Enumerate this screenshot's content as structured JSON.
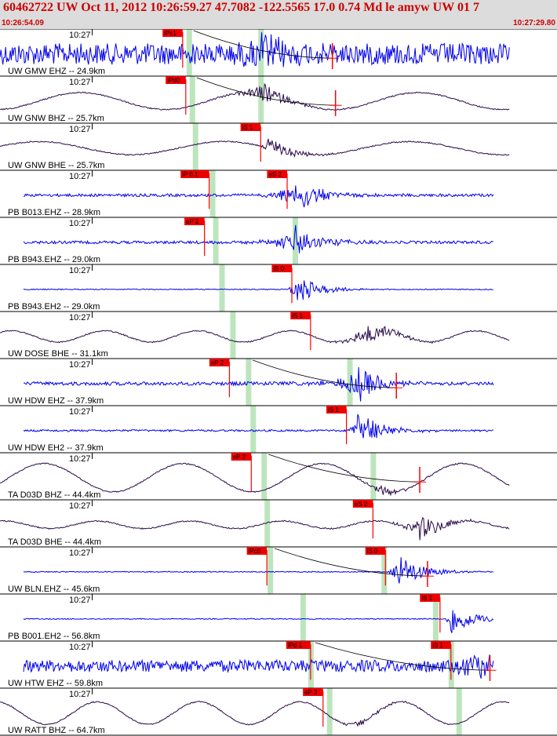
{
  "header": {
    "title": "60462722 UW Oct 11, 2012 10:26:59.27   47.7082 -122.5565 17.0 0.74 Md le amyw UW 01    7",
    "start_time": "10:26:54.09",
    "end_time": "10:27:29.80"
  },
  "time_axis": {
    "start_seconds": 54.09,
    "end_seconds": 89.8,
    "minute_label": "10:27"
  },
  "colors": {
    "header_bg": "#dcdcdc",
    "header_text": "#cc0000",
    "pick": "#ff0000",
    "pick_label_bg": "#ee0000",
    "window": "#bde5bd",
    "trace_blue": "#0000ee",
    "trace_dark": "#2a0a4a",
    "grid": "#000000"
  },
  "traces": [
    {
      "label": "UW GMW EHZ -- 24.9km",
      "color": "blue",
      "style": "noise",
      "amp": 0.9,
      "freq": 0,
      "p_label": "iPc1",
      "p_time": 65.8,
      "s_label": "",
      "s_time": null,
      "event_start": 66.0,
      "event_time": 70.8,
      "event_amp": 1.6,
      "windows": [
        66.2,
        70.8
      ],
      "theory": true,
      "cross": 75.4
    },
    {
      "label": "UW GNW BHZ -- 25.7km",
      "color": "dark",
      "style": "wave",
      "amp": 0.45,
      "freq": 3.3,
      "p_label": "iPd0",
      "p_time": 66.0,
      "s_label": "",
      "s_time": null,
      "event_start": 66.0,
      "event_time": 70.8,
      "event_amp": 0.9,
      "windows": [
        66.4,
        70.8
      ],
      "theory": true,
      "cross": 75.6
    },
    {
      "label": "UW GNW BHE -- 25.7km",
      "color": "dark",
      "style": "wave",
      "amp": 0.35,
      "freq": 3.0,
      "p_label": "",
      "p_time": null,
      "s_label": "iS 1",
      "s_time": 70.8,
      "event_start": 70.8,
      "event_time": 71.2,
      "event_amp": 0.9,
      "windows": [
        66.6
      ],
      "theory": false,
      "cross": null
    },
    {
      "label": "PB B013.EHZ -- 28.9km",
      "color": "blue",
      "style": "noise",
      "amp": 0.12,
      "freq": 0,
      "p_label": "iP 0.1",
      "p_time": 67.5,
      "s_label": "eS 2",
      "s_time": 72.5,
      "event_start": 67.5,
      "event_time": 73.0,
      "event_amp": 1.5,
      "windows": [
        67.7
      ],
      "theory": false,
      "cross": null
    },
    {
      "label": "PB B943.EHZ -- 29.0km",
      "color": "blue",
      "style": "noise",
      "amp": 0.12,
      "freq": 0,
      "p_label": "eP 2",
      "p_time": 67.2,
      "s_label": "",
      "s_time": null,
      "event_start": 67.2,
      "event_time": 73.0,
      "event_amp": 1.4,
      "windows": [
        67.9,
        73.0
      ],
      "theory": false,
      "cross": null
    },
    {
      "label": "PB B943.EH2 -- 29.0km",
      "color": "blue",
      "style": "noise",
      "amp": 0.04,
      "freq": 0,
      "p_label": "",
      "p_time": null,
      "s_label": "iS 0",
      "s_time": 72.8,
      "event_start": 72.5,
      "event_time": 73.0,
      "event_amp": 1.2,
      "windows": [
        68.3
      ],
      "theory": false,
      "cross": null
    },
    {
      "label": "UW DOSE BHE -- 31.1km",
      "color": "dark",
      "style": "wave",
      "amp": 0.3,
      "freq": 6.0,
      "p_label": "",
      "p_time": null,
      "s_label": "iS 1",
      "s_time": 74.0,
      "event_start": 74.0,
      "event_time": 77.5,
      "event_amp": 0.9,
      "windows": [
        69.0
      ],
      "theory": false,
      "cross": null
    },
    {
      "label": "UW HDW EHZ -- 37.9km",
      "color": "blue",
      "style": "noise",
      "amp": 0.15,
      "freq": 0,
      "p_label": "eP 2",
      "p_time": 68.8,
      "s_label": "",
      "s_time": null,
      "event_start": 69.0,
      "event_time": 77.0,
      "event_amp": 1.5,
      "windows": [
        70.0,
        76.5
      ],
      "theory": true,
      "cross": 79.5
    },
    {
      "label": "UW HDW EH2 -- 37.9km",
      "color": "blue",
      "style": "noise",
      "amp": 0.08,
      "freq": 0,
      "p_label": "",
      "p_time": null,
      "s_label": "iS 1",
      "s_time": 76.3,
      "event_start": 76.3,
      "event_time": 77.0,
      "event_amp": 1.5,
      "windows": [
        70.3
      ],
      "theory": false,
      "cross": null
    },
    {
      "label": "TA D03D BHZ -- 44.4km",
      "color": "dark",
      "style": "wave",
      "amp": 0.75,
      "freq": 4.0,
      "p_label": "eP 2",
      "p_time": 70.2,
      "s_label": "",
      "s_time": null,
      "event_start": 70.5,
      "event_time": 78.5,
      "event_amp": 0.4,
      "windows": [
        71.0,
        78.0
      ],
      "theory": true,
      "cross": 81.0
    },
    {
      "label": "TA D03D BHE -- 44.4km",
      "color": "dark",
      "style": "wave",
      "amp": 0.2,
      "freq": 6.0,
      "p_label": "",
      "p_time": null,
      "s_label": "eS 2",
      "s_time": 78.0,
      "event_start": 78.0,
      "event_time": 81.0,
      "event_amp": 1.0,
      "windows": [
        71.2
      ],
      "theory": false,
      "cross": null
    },
    {
      "label": "UW BLN.EHZ -- 45.6km",
      "color": "blue",
      "style": "noise",
      "amp": 0.04,
      "freq": 0,
      "p_label": "iPc0",
      "p_time": 71.2,
      "s_label": "iS 0",
      "s_time": 78.8,
      "event_start": 79.0,
      "event_time": 79.5,
      "event_amp": 1.5,
      "windows": [
        71.4,
        78.7
      ],
      "theory": true,
      "cross": 81.5
    },
    {
      "label": "PB B001.EH2 -- 56.8km",
      "color": "blue",
      "style": "noise",
      "amp": 0.04,
      "freq": 0,
      "p_label": "",
      "p_time": null,
      "s_label": "iS 1",
      "s_time": 82.3,
      "event_start": 82.6,
      "event_time": 83.0,
      "event_amp": 1.3,
      "windows": [
        73.5,
        82.0
      ],
      "theory": false,
      "cross": null
    },
    {
      "label": "UW HTW EHZ -- 59.8km",
      "color": "blue",
      "style": "noise",
      "amp": 0.5,
      "freq": 0,
      "p_label": "iPd 1",
      "p_time": 74.0,
      "s_label": "iS 1",
      "s_time": 83.0,
      "event_start": 74.0,
      "event_time": 84.5,
      "event_amp": 1.3,
      "windows": [
        74.0,
        83.0
      ],
      "theory": true,
      "cross": 85.5
    },
    {
      "label": "UW RATT BHZ -- 64.7km",
      "color": "dark",
      "style": "wave",
      "amp": 0.6,
      "freq": 5.5,
      "p_label": "eP 2",
      "p_time": 74.8,
      "s_label": "",
      "s_time": null,
      "event_start": 74.8,
      "event_time": 77.0,
      "event_amp": 0.3,
      "windows": [
        75.2,
        83.5
      ],
      "theory": false,
      "cross": null
    }
  ]
}
